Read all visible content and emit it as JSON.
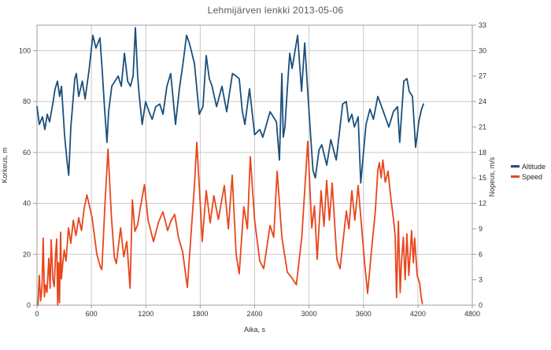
{
  "title": "Lehmijärven lenkki 2013-05-06",
  "axes": {
    "x": {
      "label": "Aika, s",
      "min": 0,
      "max": 4800,
      "ticks": [
        0,
        600,
        1200,
        1800,
        2400,
        3000,
        3600,
        4200,
        4800
      ]
    },
    "y_left": {
      "label": "Korkeus, m",
      "min": 0,
      "max": 110,
      "ticks": [
        0,
        20,
        40,
        60,
        80,
        100
      ]
    },
    "y_right": {
      "label": "Nopeus, m/s",
      "min": 0,
      "max": 33,
      "ticks": [
        0,
        3,
        6,
        9,
        12,
        15,
        18,
        21,
        24,
        27,
        30,
        33
      ]
    }
  },
  "legend": {
    "position": "right",
    "entries": [
      {
        "label": "Altitude",
        "color": "#1b4f7c"
      },
      {
        "label": "Speed",
        "color": "#e8461c"
      }
    ]
  },
  "colors": {
    "altitude_line": "#1b4f7c",
    "speed_line": "#e8461c",
    "gridline": "#c9c9c9",
    "plot_border": "#9f9f9f",
    "tick_text": "#333333",
    "title_text": "#595959",
    "background": "#ffffff"
  },
  "chart_data": {
    "type": "line",
    "title": "Lehmijärven lenkki 2013-05-06",
    "xlabel": "Aika, s",
    "ylabel_left": "Korkeus, m",
    "ylabel_right": "Nopeus, m/s",
    "xlim": [
      0,
      4800
    ],
    "ylim_left": [
      0,
      110
    ],
    "ylim_right": [
      0,
      33
    ],
    "grid": true,
    "legend_position": "right",
    "series": [
      {
        "name": "Altitude",
        "axis": "left",
        "units": "m",
        "color": "#1b4f7c",
        "points": [
          [
            0,
            78
          ],
          [
            26,
            71
          ],
          [
            60,
            74
          ],
          [
            87,
            69
          ],
          [
            113,
            75
          ],
          [
            139,
            72
          ],
          [
            174,
            79
          ],
          [
            200,
            85
          ],
          [
            226,
            88
          ],
          [
            250,
            82
          ],
          [
            270,
            86
          ],
          [
            304,
            67
          ],
          [
            330,
            57
          ],
          [
            350,
            51
          ],
          [
            373,
            70
          ],
          [
            417,
            89
          ],
          [
            434,
            91
          ],
          [
            460,
            82
          ],
          [
            500,
            88
          ],
          [
            530,
            81
          ],
          [
            573,
            92
          ],
          [
            616,
            106
          ],
          [
            650,
            101
          ],
          [
            694,
            105
          ],
          [
            720,
            92
          ],
          [
            746,
            77
          ],
          [
            772,
            64
          ],
          [
            790,
            76
          ],
          [
            825,
            86
          ],
          [
            860,
            88
          ],
          [
            895,
            90
          ],
          [
            930,
            86
          ],
          [
            964,
            99
          ],
          [
            1000,
            88
          ],
          [
            1030,
            86
          ],
          [
            1060,
            90
          ],
          [
            1085,
            109
          ],
          [
            1110,
            90
          ],
          [
            1128,
            82
          ],
          [
            1160,
            71
          ],
          [
            1198,
            80
          ],
          [
            1235,
            76
          ],
          [
            1270,
            73
          ],
          [
            1310,
            78
          ],
          [
            1354,
            79
          ],
          [
            1390,
            75
          ],
          [
            1432,
            86
          ],
          [
            1475,
            91
          ],
          [
            1528,
            71
          ],
          [
            1570,
            85
          ],
          [
            1610,
            95
          ],
          [
            1649,
            106
          ],
          [
            1680,
            103
          ],
          [
            1736,
            95
          ],
          [
            1790,
            75
          ],
          [
            1830,
            78
          ],
          [
            1866,
            98
          ],
          [
            1900,
            89
          ],
          [
            1930,
            86
          ],
          [
            1980,
            78
          ],
          [
            2040,
            86
          ],
          [
            2092,
            76
          ],
          [
            2155,
            91
          ],
          [
            2196,
            90
          ],
          [
            2230,
            89
          ],
          [
            2265,
            76
          ],
          [
            2292,
            71
          ],
          [
            2344,
            85
          ],
          [
            2400,
            67
          ],
          [
            2456,
            69
          ],
          [
            2490,
            66
          ],
          [
            2570,
            76
          ],
          [
            2640,
            72
          ],
          [
            2673,
            57
          ],
          [
            2700,
            91
          ],
          [
            2715,
            66
          ],
          [
            2734,
            70
          ],
          [
            2760,
            85
          ],
          [
            2787,
            99
          ],
          [
            2813,
            93
          ],
          [
            2874,
            106
          ],
          [
            2917,
            84
          ],
          [
            2952,
            103
          ],
          [
            3000,
            76
          ],
          [
            3043,
            53
          ],
          [
            3069,
            50
          ],
          [
            3110,
            61
          ],
          [
            3140,
            63
          ],
          [
            3195,
            55
          ],
          [
            3240,
            65
          ],
          [
            3300,
            57
          ],
          [
            3370,
            79
          ],
          [
            3410,
            80
          ],
          [
            3437,
            72
          ],
          [
            3472,
            75
          ],
          [
            3500,
            70
          ],
          [
            3541,
            74
          ],
          [
            3570,
            48
          ],
          [
            3628,
            71
          ],
          [
            3672,
            77
          ],
          [
            3710,
            73
          ],
          [
            3758,
            82
          ],
          [
            3800,
            78
          ],
          [
            3840,
            74
          ],
          [
            3880,
            70
          ],
          [
            3930,
            76
          ],
          [
            3975,
            78
          ],
          [
            4000,
            64
          ],
          [
            4045,
            88
          ],
          [
            4080,
            89
          ],
          [
            4105,
            84
          ],
          [
            4140,
            82
          ],
          [
            4175,
            62
          ],
          [
            4210,
            72
          ],
          [
            4240,
            77
          ],
          [
            4262,
            79
          ]
        ]
      },
      {
        "name": "Speed",
        "axis": "right",
        "units": "m/s",
        "color": "#e8461c",
        "points": [
          [
            10,
            0
          ],
          [
            25,
            3.5
          ],
          [
            40,
            0.5
          ],
          [
            55,
            2
          ],
          [
            69,
            7.9
          ],
          [
            82,
            1
          ],
          [
            95,
            2.4
          ],
          [
            110,
            1.5
          ],
          [
            130,
            5.5
          ],
          [
            145,
            2
          ],
          [
            156,
            7.7
          ],
          [
            175,
            3
          ],
          [
            190,
            2.2
          ],
          [
            205,
            6
          ],
          [
            217,
            7.8
          ],
          [
            228,
            0
          ],
          [
            238,
            5
          ],
          [
            248,
            0.3
          ],
          [
            260,
            8.6
          ],
          [
            269,
            3.1
          ],
          [
            285,
            5
          ],
          [
            300,
            6.5
          ],
          [
            320,
            5.2
          ],
          [
            347,
            9.1
          ],
          [
            373,
            7.3
          ],
          [
            400,
            10
          ],
          [
            430,
            8.2
          ],
          [
            460,
            10.3
          ],
          [
            490,
            8.8
          ],
          [
            520,
            11.4
          ],
          [
            550,
            13
          ],
          [
            608,
            10.3
          ],
          [
            660,
            6
          ],
          [
            700,
            4.5
          ],
          [
            715,
            4.2
          ],
          [
            750,
            12
          ],
          [
            783,
            18.4
          ],
          [
            820,
            10.5
          ],
          [
            852,
            5.7
          ],
          [
            875,
            4.9
          ],
          [
            922,
            9.1
          ],
          [
            957,
            5.7
          ],
          [
            990,
            7.5
          ],
          [
            1026,
            2
          ],
          [
            1052,
            12.4
          ],
          [
            1080,
            8.7
          ],
          [
            1110,
            9.5
          ],
          [
            1140,
            11.5
          ],
          [
            1185,
            14.2
          ],
          [
            1226,
            10
          ],
          [
            1285,
            7.5
          ],
          [
            1340,
            9.8
          ],
          [
            1389,
            11
          ],
          [
            1441,
            8.8
          ],
          [
            1480,
            10
          ],
          [
            1519,
            10.7
          ],
          [
            1560,
            8
          ],
          [
            1606,
            6.3
          ],
          [
            1658,
            2.1
          ],
          [
            1736,
            14.1
          ],
          [
            1762,
            19.2
          ],
          [
            1800,
            12
          ],
          [
            1822,
            7.5
          ],
          [
            1866,
            13.5
          ],
          [
            1910,
            9.7
          ],
          [
            1950,
            12.9
          ],
          [
            2000,
            10.1
          ],
          [
            2066,
            14.1
          ],
          [
            2110,
            9
          ],
          [
            2153,
            15.3
          ],
          [
            2196,
            6
          ],
          [
            2230,
            3.7
          ],
          [
            2280,
            11.6
          ],
          [
            2320,
            9
          ],
          [
            2352,
            17.5
          ],
          [
            2400,
            10
          ],
          [
            2456,
            5.2
          ],
          [
            2500,
            4.3
          ],
          [
            2570,
            9.4
          ],
          [
            2610,
            8
          ],
          [
            2648,
            15.8
          ],
          [
            2700,
            8
          ],
          [
            2760,
            3.9
          ],
          [
            2805,
            3.3
          ],
          [
            2860,
            2.4
          ],
          [
            2920,
            8
          ],
          [
            2986,
            19.3
          ],
          [
            3030,
            9.1
          ],
          [
            3060,
            11.7
          ],
          [
            3090,
            5.4
          ],
          [
            3133,
            13.5
          ],
          [
            3165,
            9.3
          ],
          [
            3194,
            14.7
          ],
          [
            3225,
            10
          ],
          [
            3255,
            14.4
          ],
          [
            3307,
            5.4
          ],
          [
            3342,
            4.3
          ],
          [
            3411,
            11.1
          ],
          [
            3440,
            9
          ],
          [
            3472,
            13.5
          ],
          [
            3505,
            10
          ],
          [
            3541,
            14.1
          ],
          [
            3611,
            5.2
          ],
          [
            3646,
            1.4
          ],
          [
            3698,
            7.5
          ],
          [
            3730,
            10.9
          ],
          [
            3758,
            15.9
          ],
          [
            3775,
            16.8
          ],
          [
            3795,
            15
          ],
          [
            3814,
            17.1
          ],
          [
            3840,
            14.5
          ],
          [
            3871,
            15.8
          ],
          [
            3900,
            12.8
          ],
          [
            3930,
            10.2
          ],
          [
            3949,
            8.2
          ],
          [
            3965,
            0.9
          ],
          [
            3985,
            9.9
          ],
          [
            4005,
            1.5
          ],
          [
            4018,
            4.9
          ],
          [
            4040,
            8
          ],
          [
            4060,
            3
          ],
          [
            4079,
            8.4
          ],
          [
            4100,
            3.5
          ],
          [
            4131,
            8.8
          ],
          [
            4150,
            5
          ],
          [
            4165,
            7.9
          ],
          [
            4192,
            3.5
          ],
          [
            4220,
            2.6
          ],
          [
            4236,
            1
          ],
          [
            4250,
            0.2
          ]
        ]
      }
    ]
  }
}
